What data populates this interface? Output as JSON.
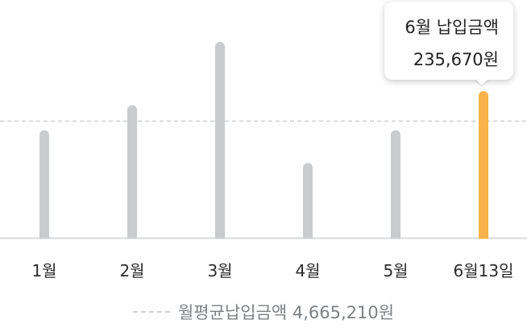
{
  "chart_data": {
    "type": "bar",
    "categories": [
      "1월",
      "2월",
      "3월",
      "4월",
      "5월",
      "6월13일"
    ],
    "values": [
      4300000,
      5300000,
      7830000,
      2990000,
      4300000,
      235670
    ],
    "ylim": [
      0,
      7830000
    ],
    "average": 4665210,
    "highlight_index": 5,
    "colors": {
      "bar": "#c8ccce",
      "highlight": "#f9b34a",
      "average_line": "#cfd2d4",
      "axis": "#d8dadb"
    },
    "tooltip": {
      "title": "6월 납입금액",
      "value": "235,670원"
    },
    "legend": {
      "label": "월평균납입금액 4,665,210원"
    }
  }
}
